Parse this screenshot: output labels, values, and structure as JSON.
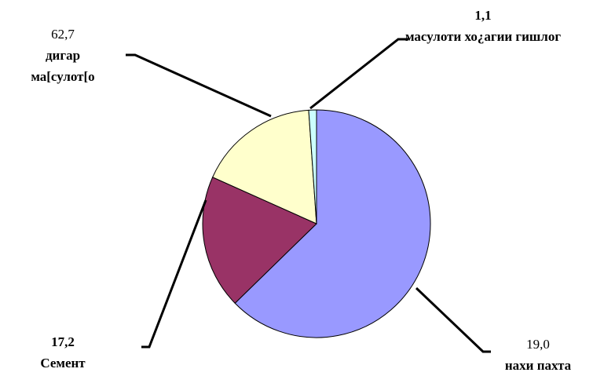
{
  "chart_data": {
    "type": "pie",
    "categories": [
      "дигар ма[сулот[о",
      "нахи пахта",
      "Семент",
      "масулоти хо¿агии гишлог"
    ],
    "values": [
      62.7,
      19.0,
      17.2,
      1.1
    ],
    "value_labels": [
      "62,7",
      "19,0",
      "17,2",
      "1,1"
    ],
    "colors": [
      "#9999ff",
      "#993366",
      "#ffffcc",
      "#ccffff"
    ]
  }
}
